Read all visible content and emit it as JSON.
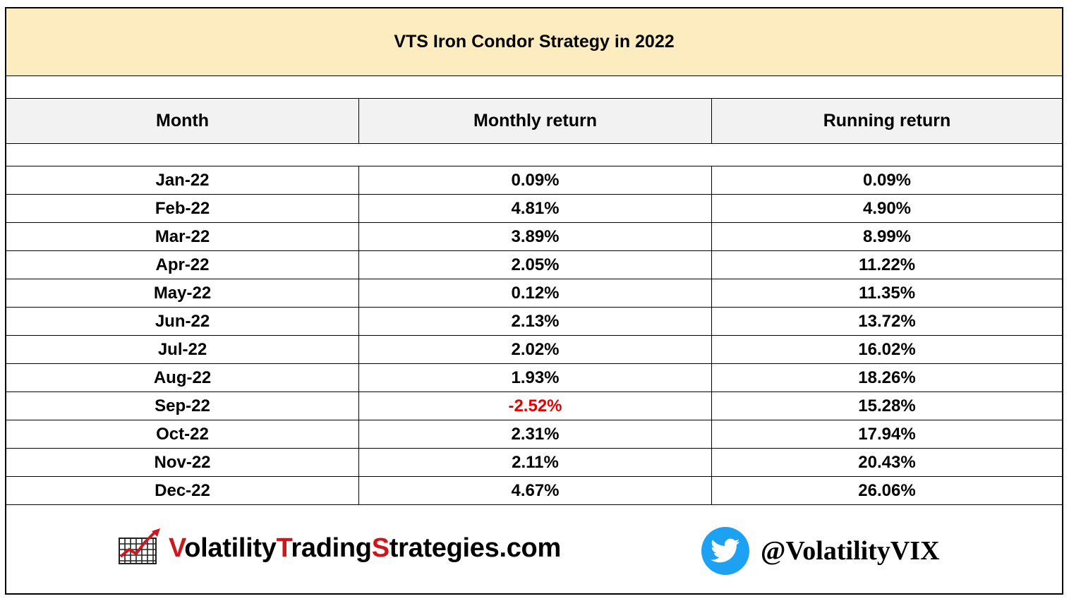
{
  "title": "VTS Iron Condor Strategy in 2022",
  "headers": {
    "month": "Month",
    "monthly": "Monthly return",
    "running": "Running return"
  },
  "rows": [
    {
      "month": "Jan-22",
      "monthly": "0.09%",
      "running": "0.09%"
    },
    {
      "month": "Feb-22",
      "monthly": "4.81%",
      "running": "4.90%"
    },
    {
      "month": "Mar-22",
      "monthly": "3.89%",
      "running": "8.99%"
    },
    {
      "month": "Apr-22",
      "monthly": "2.05%",
      "running": "11.22%"
    },
    {
      "month": "May-22",
      "monthly": "0.12%",
      "running": "11.35%"
    },
    {
      "month": "Jun-22",
      "monthly": "2.13%",
      "running": "13.72%"
    },
    {
      "month": "Jul-22",
      "monthly": "2.02%",
      "running": "16.02%"
    },
    {
      "month": "Aug-22",
      "monthly": "1.93%",
      "running": "18.26%"
    },
    {
      "month": "Sep-22",
      "monthly": "-2.52%",
      "running": "15.28%"
    },
    {
      "month": "Oct-22",
      "monthly": "2.31%",
      "running": "17.94%"
    },
    {
      "month": "Nov-22",
      "monthly": "2.11%",
      "running": "20.43%"
    },
    {
      "month": "Dec-22",
      "monthly": "4.67%",
      "running": "26.06%"
    }
  ],
  "colors": {
    "title_bg": "#fdecc0",
    "header_bg": "#f2f2f2",
    "negative": "#e60000",
    "brand_red": "#d0161b",
    "twitter_blue": "#1da1f2"
  },
  "footer": {
    "logo_parts": [
      "V",
      "olatility",
      "T",
      "rading",
      "S",
      "trategies.com"
    ],
    "logo_icon": "chart-trend-icon",
    "twitter_icon": "twitter-bird-icon",
    "handle": "@VolatilityVIX"
  }
}
